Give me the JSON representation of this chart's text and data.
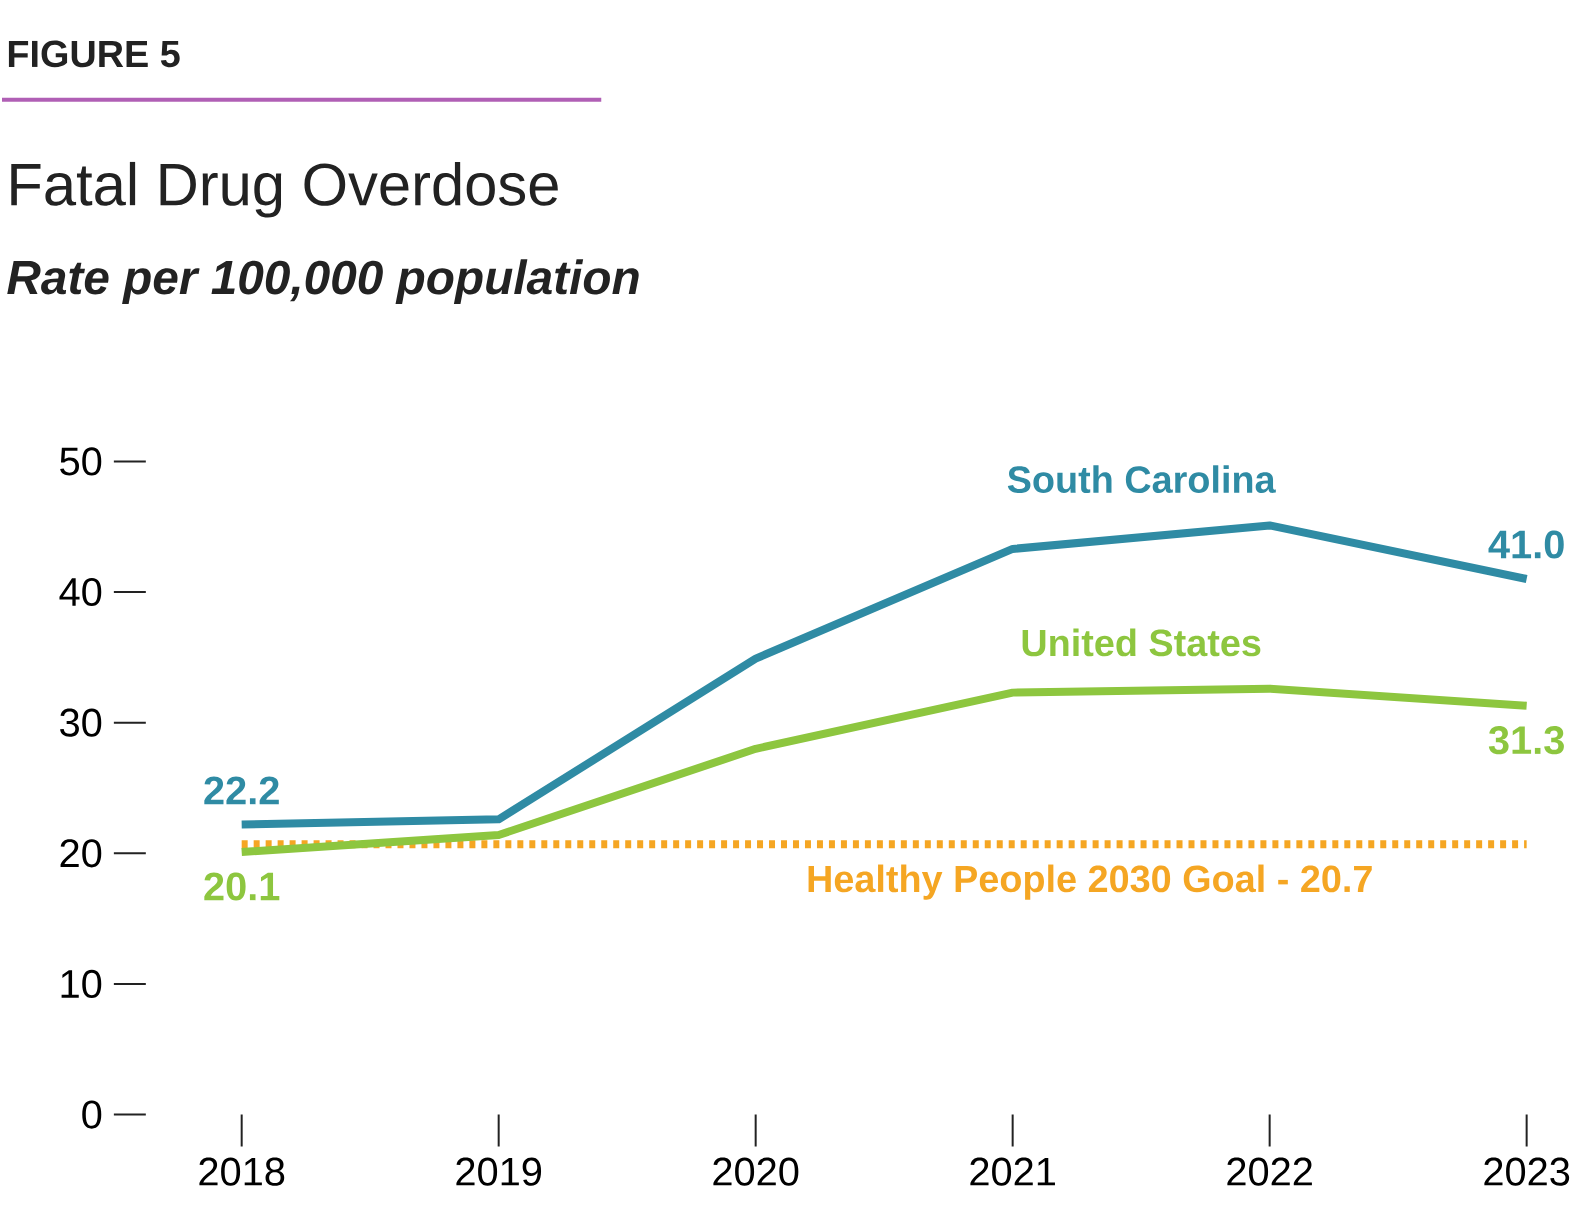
{
  "chart_data": {
    "type": "line",
    "title": "Fatal Drug Overdose",
    "subtitle": "Rate per 100,000 population",
    "annotations": [
      "FIGURE 5"
    ],
    "categories": [
      "2018",
      "2019",
      "2020",
      "2021",
      "2022",
      "2023"
    ],
    "series": [
      {
        "name": "South Carolina",
        "color": "#2f8ba4",
        "values": [
          22.2,
          22.6,
          34.9,
          43.3,
          45.1,
          41.0
        ],
        "value_labels": [
          "22.2",
          null,
          null,
          null,
          null,
          "41.0"
        ]
      },
      {
        "name": "United States",
        "color": "#8dc63f",
        "values": [
          20.1,
          21.4,
          28.0,
          32.3,
          32.6,
          31.3
        ],
        "value_labels": [
          "20.1",
          null,
          null,
          null,
          null,
          "31.3"
        ]
      }
    ],
    "ylim": [
      0,
      50
    ],
    "yticks": [
      0,
      10,
      20,
      30,
      40,
      50
    ],
    "ref_lines": [
      {
        "axis": "y",
        "value": 20.7,
        "label": "Healthy People 2030 Goal - 20.7",
        "color": "#f5a623",
        "line_style": "dotted"
      }
    ],
    "line_style": "solid"
  }
}
